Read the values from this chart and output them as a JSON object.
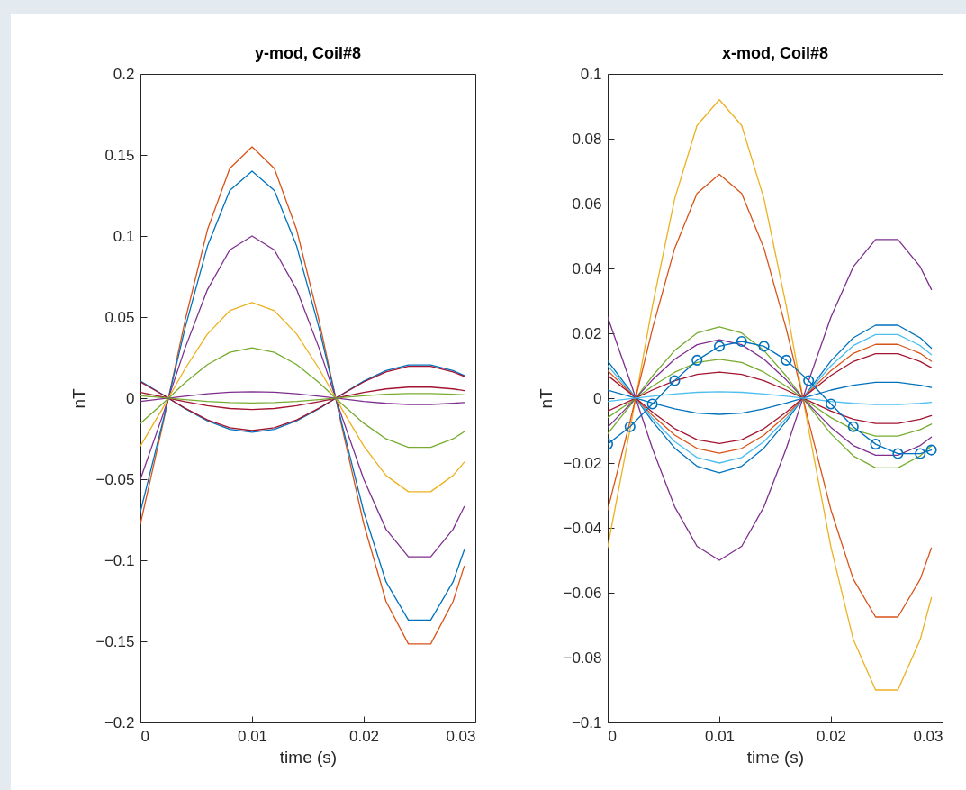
{
  "chart_data": [
    {
      "type": "line",
      "title": "y-mod, Coil#8",
      "xlabel": "time (s)",
      "ylabel": "nT",
      "xlim": [
        0,
        0.03
      ],
      "xticks": [
        0,
        0.01,
        0.02,
        0.03
      ],
      "ylim": [
        -0.2,
        0.2
      ],
      "yticks": [
        -0.2,
        -0.15,
        -0.1,
        -0.05,
        0,
        0.05,
        0.1,
        0.15,
        0.2
      ],
      "grid": false,
      "line_style": "solid",
      "x": [
        0,
        0.002,
        0.004,
        0.006,
        0.008,
        0.01,
        0.012,
        0.014,
        0.016,
        0.018,
        0.02,
        0.022,
        0.024,
        0.026,
        0.028,
        0.029
      ],
      "series": [
        {
          "color": "#d95319",
          "values": [
            -0.0775,
            -0.0163,
            0.0479,
            0.1037,
            0.1417,
            0.155,
            0.1417,
            0.1037,
            0.0479,
            -0.0163,
            -0.0775,
            -0.1254,
            -0.1516,
            -0.1516,
            -0.1254,
            -0.1037
          ]
        },
        {
          "color": "#0072bd",
          "values": [
            -0.07,
            -0.0147,
            0.0433,
            0.0937,
            0.128,
            0.14,
            0.128,
            0.0937,
            0.0433,
            -0.0147,
            -0.07,
            -0.1133,
            -0.1369,
            -0.1369,
            -0.1133,
            -0.0937
          ]
        },
        {
          "color": "#7e2f8e",
          "values": [
            -0.05,
            -0.0105,
            0.0309,
            0.0669,
            0.0914,
            0.1,
            0.0914,
            0.0669,
            0.0309,
            -0.0105,
            -0.05,
            -0.0809,
            -0.0978,
            -0.0978,
            -0.0809,
            -0.0669
          ]
        },
        {
          "color": "#edb120",
          "values": [
            -0.0295,
            -0.0062,
            0.0182,
            0.0395,
            0.0539,
            0.059,
            0.0539,
            0.0395,
            0.0182,
            -0.0062,
            -0.0295,
            -0.0477,
            -0.0577,
            -0.0577,
            -0.0477,
            -0.0395
          ]
        },
        {
          "color": "#77ac30",
          "values": [
            -0.0155,
            -0.0033,
            0.0096,
            0.0207,
            0.0283,
            0.031,
            0.0283,
            0.0207,
            0.0096,
            -0.0033,
            -0.0155,
            -0.0251,
            -0.0303,
            -0.0303,
            -0.0251,
            -0.0207
          ]
        },
        {
          "color": "#0072bd",
          "values": [
            0.0105,
            0.0022,
            -0.0065,
            -0.014,
            -0.0192,
            -0.021,
            -0.0192,
            -0.014,
            -0.0065,
            0.0022,
            0.0105,
            0.017,
            0.0205,
            0.0205,
            0.017,
            0.014
          ]
        },
        {
          "color": "#a2142f",
          "values": [
            0.01,
            0.0021,
            -0.0062,
            -0.0134,
            -0.0183,
            -0.02,
            -0.0183,
            -0.0134,
            -0.0062,
            0.0021,
            0.01,
            0.0162,
            0.0196,
            0.0196,
            0.0162,
            0.0134
          ]
        },
        {
          "color": "#a2142f",
          "values": [
            0.0035,
            0.0007,
            -0.0022,
            -0.0047,
            -0.0064,
            -0.007,
            -0.0064,
            -0.0047,
            -0.0022,
            0.0007,
            0.0035,
            0.0057,
            0.0068,
            0.0068,
            0.0057,
            0.0047
          ]
        },
        {
          "color": "#7e2f8e",
          "values": [
            -0.002,
            -0.0004,
            0.0012,
            0.0027,
            0.0037,
            0.004,
            0.0037,
            0.0027,
            0.0012,
            -0.0004,
            -0.002,
            -0.0032,
            -0.0039,
            -0.0039,
            -0.0032,
            -0.0027
          ]
        },
        {
          "color": "#77ac30",
          "values": [
            0.0015,
            0.0003,
            -0.0009,
            -0.002,
            -0.0027,
            -0.003,
            -0.0027,
            -0.002,
            -0.0009,
            0.0003,
            0.0015,
            0.0024,
            0.0029,
            0.0029,
            0.0024,
            0.002
          ]
        }
      ]
    },
    {
      "type": "line",
      "title": "x-mod, Coil#8",
      "xlabel": "time (s)",
      "ylabel": "nT",
      "xlim": [
        0,
        0.03
      ],
      "xticks": [
        0,
        0.01,
        0.02,
        0.03
      ],
      "ylim": [
        -0.1,
        0.1
      ],
      "yticks": [
        -0.1,
        -0.08,
        -0.06,
        -0.04,
        -0.02,
        0,
        0.02,
        0.04,
        0.06,
        0.08,
        0.1
      ],
      "grid": false,
      "line_style": "solid",
      "x": [
        0,
        0.002,
        0.004,
        0.006,
        0.008,
        0.01,
        0.012,
        0.014,
        0.016,
        0.018,
        0.02,
        0.022,
        0.024,
        0.026,
        0.028,
        0.029
      ],
      "series": [
        {
          "color": "#edb120",
          "values": [
            -0.046,
            -0.0097,
            0.0284,
            0.0615,
            0.0841,
            0.092,
            0.0841,
            0.0615,
            0.0284,
            -0.0097,
            -0.046,
            -0.0744,
            -0.09,
            -0.09,
            -0.0744,
            -0.0615
          ]
        },
        {
          "color": "#d95319",
          "values": [
            -0.0345,
            -0.0072,
            0.0213,
            0.0462,
            0.0631,
            0.069,
            0.0631,
            0.0462,
            0.0213,
            -0.0072,
            -0.0345,
            -0.0558,
            -0.0675,
            -0.0675,
            -0.0558,
            -0.0462
          ]
        },
        {
          "color": "#7e2f8e",
          "values": [
            0.025,
            0.0053,
            -0.0155,
            -0.0335,
            -0.0457,
            -0.05,
            -0.0457,
            -0.0335,
            -0.0155,
            0.0053,
            0.025,
            0.0405,
            0.0489,
            0.0489,
            0.0405,
            0.0335
          ]
        },
        {
          "color": "#77ac30",
          "values": [
            -0.011,
            -0.0023,
            0.0068,
            0.0147,
            0.0201,
            0.022,
            0.0201,
            0.0147,
            0.0068,
            -0.0023,
            -0.011,
            -0.0178,
            -0.0215,
            -0.0215,
            -0.0178,
            -0.0147
          ]
        },
        {
          "color": "#0072bd",
          "values": [
            0.0115,
            0.0024,
            -0.0071,
            -0.0154,
            -0.021,
            -0.023,
            -0.021,
            -0.0154,
            -0.0071,
            0.0024,
            0.0115,
            0.0186,
            0.0225,
            0.0225,
            0.0186,
            0.0154
          ]
        },
        {
          "color": "#4dbeee",
          "values": [
            0.01,
            0.0021,
            -0.0062,
            -0.0134,
            -0.0183,
            -0.02,
            -0.0183,
            -0.0134,
            -0.0062,
            0.0021,
            0.01,
            0.0162,
            0.0196,
            0.0196,
            0.0162,
            0.0134
          ]
        },
        {
          "color": "#7e2f8e",
          "values": [
            -0.009,
            -0.0019,
            0.0056,
            0.012,
            0.0165,
            0.018,
            0.0165,
            0.012,
            0.0056,
            -0.0019,
            -0.009,
            -0.0146,
            -0.0176,
            -0.0176,
            -0.0146,
            -0.012
          ]
        },
        {
          "color": "#d95319",
          "values": [
            0.0085,
            0.0018,
            -0.0053,
            -0.0114,
            -0.0155,
            -0.017,
            -0.0155,
            -0.0114,
            -0.0053,
            0.0018,
            0.0085,
            0.0138,
            0.0166,
            0.0166,
            0.0138,
            0.0114
          ]
        },
        {
          "color": "#a2142f",
          "values": [
            0.007,
            0.0015,
            -0.0043,
            -0.0094,
            -0.0128,
            -0.014,
            -0.0128,
            -0.0094,
            -0.0043,
            0.0015,
            0.007,
            0.0113,
            0.0137,
            0.0137,
            0.0113,
            0.0094
          ]
        },
        {
          "color": "#77ac30",
          "values": [
            -0.006,
            -0.0013,
            0.0037,
            0.008,
            0.011,
            0.012,
            0.011,
            0.008,
            0.0037,
            -0.0013,
            -0.006,
            -0.0097,
            -0.0117,
            -0.0117,
            -0.0097,
            -0.008
          ]
        },
        {
          "color": "#a2142f",
          "values": [
            -0.004,
            -0.0008,
            0.0025,
            0.0054,
            0.0073,
            0.008,
            0.0073,
            0.0054,
            0.0025,
            -0.0008,
            -0.004,
            -0.0065,
            -0.0078,
            -0.0078,
            -0.0065,
            -0.0054
          ]
        },
        {
          "color": "#0072bd",
          "values": [
            0.0025,
            0.0005,
            -0.0015,
            -0.0033,
            -0.0046,
            -0.005,
            -0.0046,
            -0.0033,
            -0.0015,
            0.0005,
            0.0025,
            0.004,
            0.0049,
            0.0049,
            0.004,
            0.0033
          ]
        },
        {
          "color": "#4dbeee",
          "values": [
            -0.001,
            -0.0002,
            0.0006,
            0.0013,
            0.0018,
            0.002,
            0.0018,
            0.0013,
            0.0006,
            -0.0002,
            -0.001,
            -0.0016,
            -0.002,
            -0.002,
            -0.0016,
            -0.0013
          ]
        },
        {
          "color": "#0072bd",
          "marker": "circle",
          "values": [
            -0.0142,
            -0.0088,
            -0.0018,
            0.0054,
            0.0117,
            0.016,
            0.0175,
            0.016,
            0.0117,
            0.0054,
            -0.0018,
            -0.0088,
            -0.0142,
            -0.0171,
            -0.0171,
            -0.016
          ]
        }
      ]
    }
  ]
}
